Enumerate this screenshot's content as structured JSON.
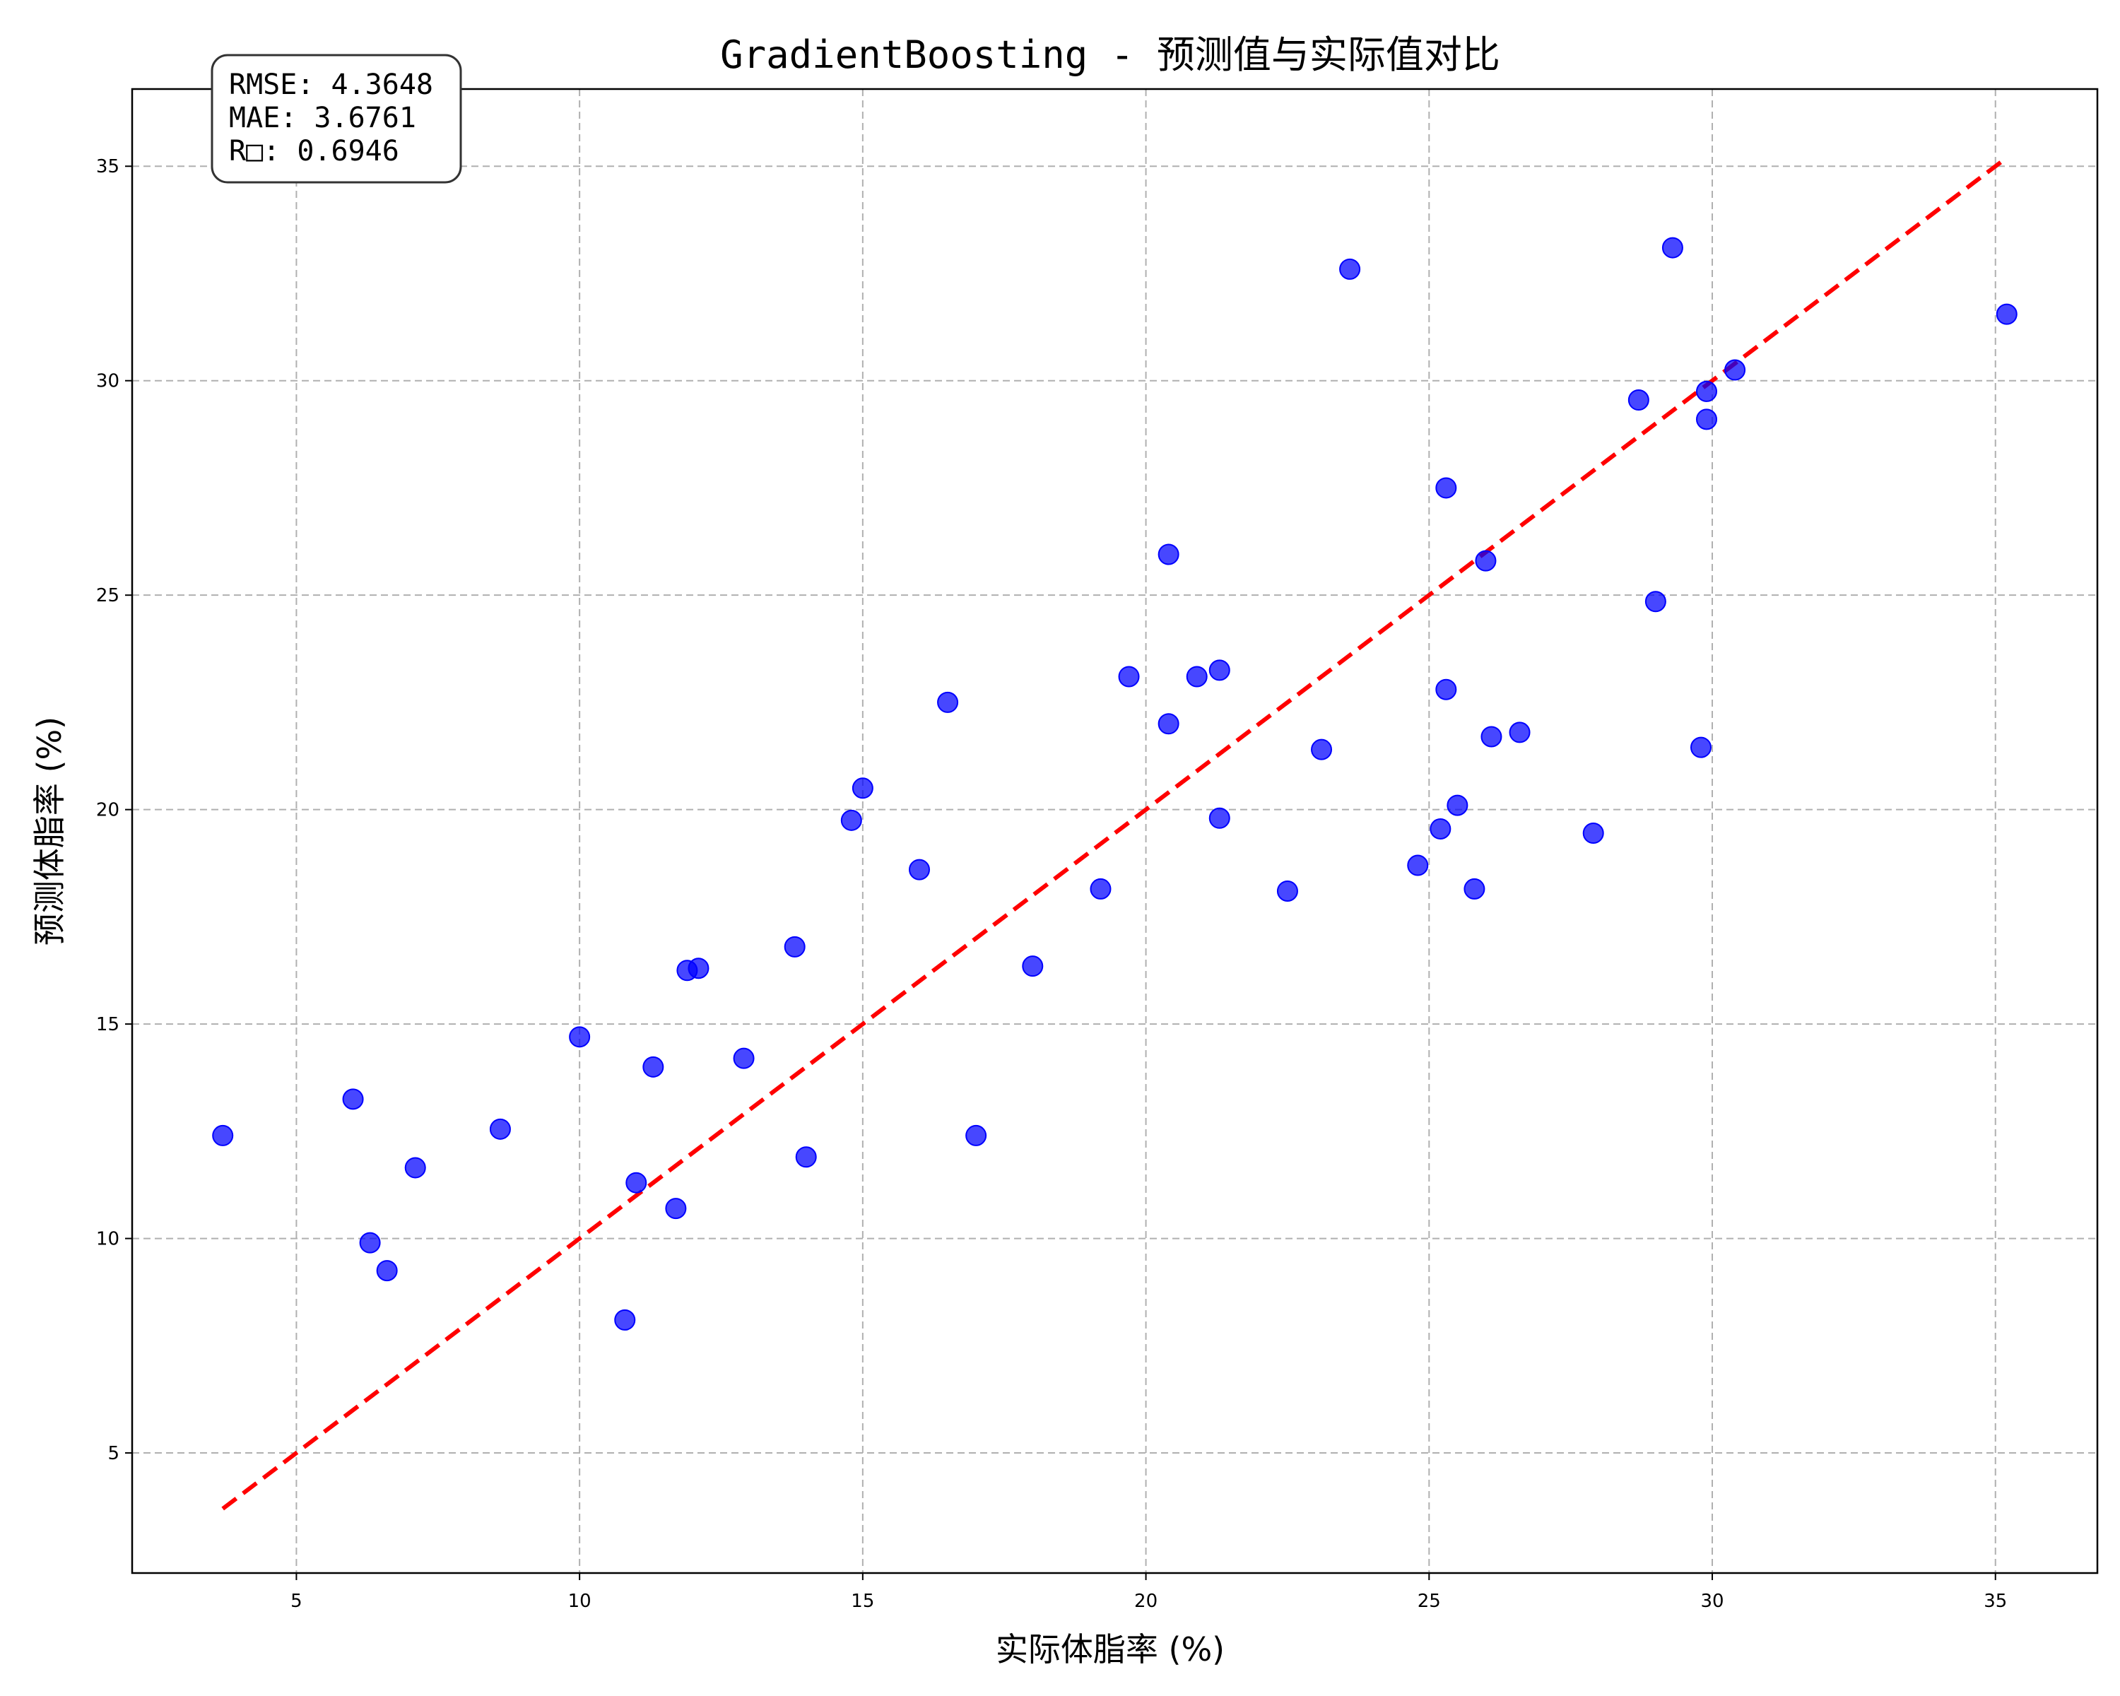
{
  "chart_data": {
    "type": "scatter",
    "title": "GradientBoosting - 预测值与实际值对比",
    "xlabel": "实际体脂率 (%)",
    "ylabel": "预测体脂率 (%)",
    "xlim": [
      2.1,
      36.8
    ],
    "ylim": [
      2.2,
      36.8
    ],
    "xticks": [
      5,
      10,
      15,
      20,
      25,
      30,
      35
    ],
    "yticks": [
      5,
      10,
      15,
      20,
      25,
      30,
      35
    ],
    "grid": true,
    "stats": [
      "RMSE: 4.3648",
      "MAE: 3.6761",
      "R□: 0.6946"
    ],
    "reference_line": {
      "x": [
        3.7,
        35.2
      ],
      "y": [
        3.7,
        35.2
      ],
      "color": "#ff0000",
      "style": "dashed"
    },
    "series": [
      {
        "color": "#0000ff",
        "points": [
          [
            3.7,
            12.4
          ],
          [
            6.0,
            13.25
          ],
          [
            6.3,
            9.9
          ],
          [
            6.6,
            9.25
          ],
          [
            7.1,
            11.65
          ],
          [
            8.6,
            12.55
          ],
          [
            10.0,
            14.7
          ],
          [
            10.8,
            8.1
          ],
          [
            11.0,
            11.3
          ],
          [
            11.3,
            14.0
          ],
          [
            11.7,
            10.7
          ],
          [
            11.9,
            16.25
          ],
          [
            12.1,
            16.3
          ],
          [
            12.9,
            14.2
          ],
          [
            13.8,
            16.8
          ],
          [
            14.0,
            11.9
          ],
          [
            14.8,
            19.75
          ],
          [
            15.0,
            20.5
          ],
          [
            16.0,
            18.6
          ],
          [
            16.5,
            22.5
          ],
          [
            17.0,
            12.4
          ],
          [
            18.0,
            16.35
          ],
          [
            19.2,
            18.15
          ],
          [
            19.7,
            23.1
          ],
          [
            20.4,
            25.95
          ],
          [
            20.4,
            22.0
          ],
          [
            20.9,
            23.1
          ],
          [
            21.3,
            23.25
          ],
          [
            21.3,
            19.8
          ],
          [
            22.5,
            18.1
          ],
          [
            23.1,
            21.4
          ],
          [
            23.6,
            32.6
          ],
          [
            24.8,
            18.7
          ],
          [
            25.2,
            19.55
          ],
          [
            25.3,
            27.5
          ],
          [
            25.3,
            22.8
          ],
          [
            25.5,
            20.1
          ],
          [
            25.8,
            18.15
          ],
          [
            26.0,
            25.8
          ],
          [
            26.1,
            21.7
          ],
          [
            26.6,
            21.8
          ],
          [
            27.9,
            19.45
          ],
          [
            28.7,
            29.55
          ],
          [
            29.0,
            24.85
          ],
          [
            29.3,
            33.1
          ],
          [
            29.8,
            21.45
          ],
          [
            29.9,
            29.75
          ],
          [
            29.9,
            29.1
          ],
          [
            30.4,
            30.25
          ],
          [
            35.2,
            31.55
          ]
        ]
      }
    ]
  }
}
